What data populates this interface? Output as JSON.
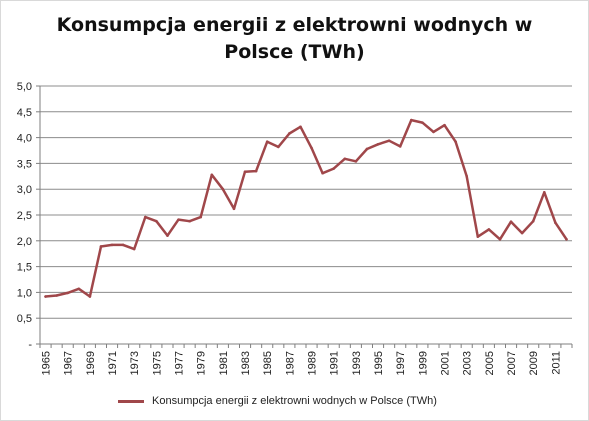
{
  "colors": {
    "series": "#a0474a",
    "grid": "#8c8c8c",
    "axis": "#7f7f7f"
  },
  "chart_data": {
    "type": "line",
    "title_lines": [
      "Konsumpcja energii z elektrowni wodnych w",
      "Polsce (TWh)"
    ],
    "x": [
      "1965",
      "1966",
      "1967",
      "1968",
      "1969",
      "1970",
      "1971",
      "1972",
      "1973",
      "1974",
      "1975",
      "1976",
      "1977",
      "1978",
      "1979",
      "1980",
      "1981",
      "1982",
      "1983",
      "1984",
      "1985",
      "1986",
      "1987",
      "1988",
      "1989",
      "1990",
      "1991",
      "1992",
      "1993",
      "1994",
      "1995",
      "1996",
      "1997",
      "1998",
      "1999",
      "2000",
      "2001",
      "2002",
      "2003",
      "2004",
      "2005",
      "2006",
      "2007",
      "2008",
      "2009",
      "2010",
      "2011",
      "2012"
    ],
    "x_tick_labels": [
      "1965",
      "1967",
      "1969",
      "1971",
      "1973",
      "1975",
      "1977",
      "1979",
      "1981",
      "1983",
      "1985",
      "1987",
      "1989",
      "1991",
      "1993",
      "1995",
      "1997",
      "1999",
      "2001",
      "2003",
      "2005",
      "2007",
      "2009",
      "2011"
    ],
    "y_tick_labels": [
      "-",
      "0,5",
      "1,0",
      "1,5",
      "2,0",
      "2,5",
      "3,0",
      "3,5",
      "4,0",
      "4,5",
      "5,0"
    ],
    "ylim": [
      0,
      5
    ],
    "ystep": 0.5,
    "grid": true,
    "legend_position": "bottom",
    "series": [
      {
        "name": "Konsumpcja energii z elektrowni wodnych w Polsce (TWh)",
        "values": [
          0.92,
          0.94,
          0.99,
          1.07,
          0.92,
          1.89,
          1.92,
          1.92,
          1.84,
          2.46,
          2.38,
          2.1,
          2.41,
          2.38,
          2.46,
          3.28,
          3.0,
          2.62,
          3.34,
          3.35,
          3.92,
          3.82,
          4.08,
          4.21,
          3.8,
          3.31,
          3.4,
          3.59,
          3.54,
          3.78,
          3.87,
          3.94,
          3.83,
          4.34,
          4.29,
          4.11,
          4.24,
          3.92,
          3.25,
          2.08,
          2.22,
          2.03,
          2.37,
          2.15,
          2.38,
          2.94,
          2.35,
          2.03
        ]
      }
    ]
  }
}
